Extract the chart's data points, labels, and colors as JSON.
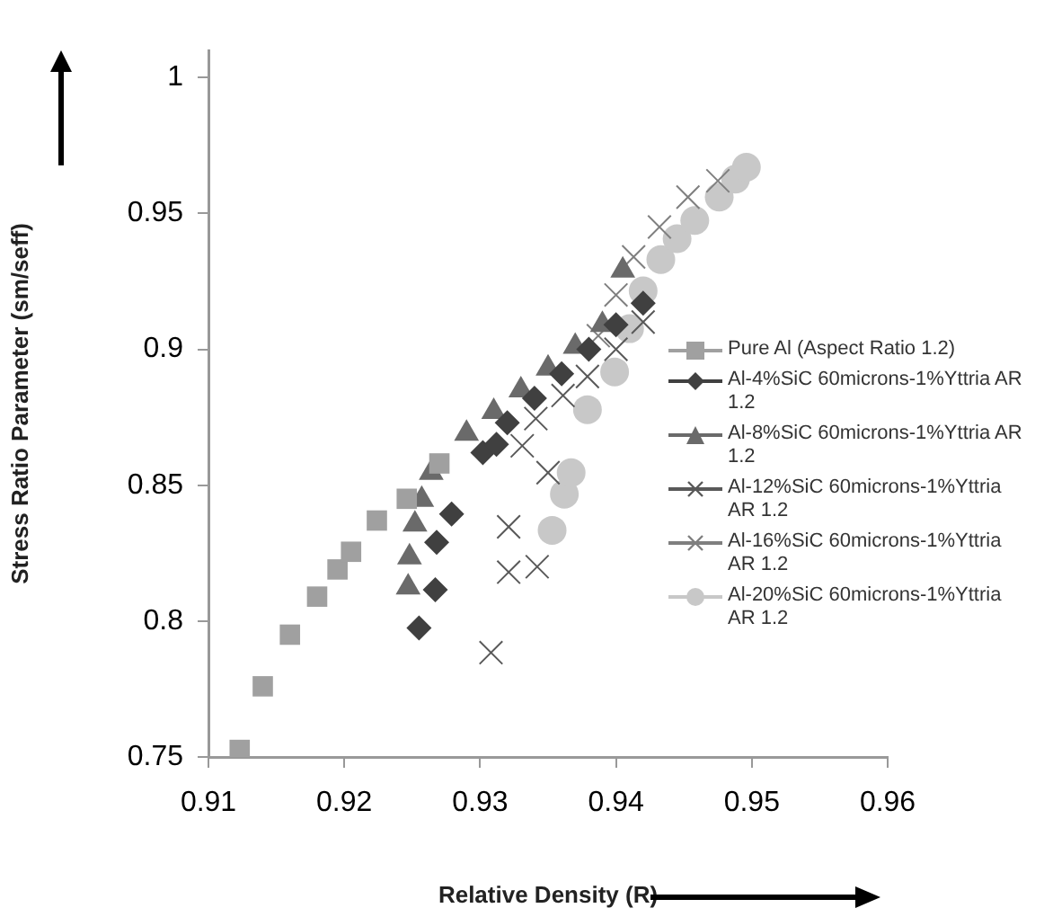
{
  "chart_data": {
    "type": "scatter",
    "xlabel": "Relative Density (R)",
    "ylabel": "Stress Ratio Parameter (sm/seff)",
    "xlim": [
      0.91,
      0.96
    ],
    "xticks": [
      0.91,
      0.92,
      0.93,
      0.94,
      0.95,
      0.96
    ],
    "ylim": [
      0.75,
      1.01
    ],
    "yticks": [
      0.75,
      0.8,
      0.85,
      0.9,
      0.95,
      1
    ],
    "grid": false,
    "legend": "right",
    "series": [
      {
        "name": "Pure Al (Aspect Ratio 1.2)",
        "color": "#a0a0a0",
        "marker": "square",
        "x": [
          0.9123,
          0.914,
          0.916,
          0.918,
          0.9195,
          0.9205,
          0.9224,
          0.9246,
          0.927
        ],
        "values": [
          0.7526,
          0.776,
          0.795,
          0.809,
          0.819,
          0.8255,
          0.837,
          0.845,
          0.858
        ]
      },
      {
        "name": "Al-4%SiC 60microns-1%Yttria AR 1.2",
        "color": "#404040",
        "marker": "diamond",
        "x": [
          0.9255,
          0.9267,
          0.9268,
          0.9279,
          0.9302,
          0.9312,
          0.932,
          0.934,
          0.936,
          0.938,
          0.94,
          0.942
        ],
        "values": [
          0.7975,
          0.8115,
          0.829,
          0.8394,
          0.862,
          0.865,
          0.873,
          0.882,
          0.891,
          0.9,
          0.909,
          0.917
        ]
      },
      {
        "name": "Al-8%SiC 60microns-1%Yttria AR 1.2",
        "color": "#6a6a6a",
        "marker": "triangle",
        "x": [
          0.9247,
          0.9248,
          0.9252,
          0.9257,
          0.9264,
          0.9273,
          0.929,
          0.931,
          0.933,
          0.935,
          0.937,
          0.939,
          0.9405
        ],
        "values": [
          0.8124,
          0.8235,
          0.8356,
          0.8447,
          0.8546,
          null,
          0.869,
          0.877,
          0.885,
          0.893,
          0.901,
          0.909,
          0.929
        ]
      },
      {
        "name": "Al-12%SiC 60microns-1%Yttria AR 1.2",
        "color": "#595959",
        "marker": "cross",
        "x": [
          0.9308,
          0.9321,
          0.9342,
          0.9321,
          0.935,
          0.9331,
          0.9341,
          0.9361,
          0.9379,
          0.94,
          0.942
        ],
        "values": [
          0.7884,
          0.818,
          0.82,
          0.8347,
          0.8546,
          0.8645,
          0.8745,
          0.883,
          0.89,
          0.9,
          0.91
        ]
      },
      {
        "name": "Al-16%SiC 60microns-1%Yttria AR 1.2",
        "color": "#7f7f7f",
        "marker": "cross",
        "x": [
          0.9387,
          0.94,
          0.9413,
          0.9432,
          0.9453,
          0.9475
        ],
        "values": [
          0.905,
          0.92,
          0.934,
          0.945,
          0.956,
          0.962
        ]
      },
      {
        "name": "Al-20%SiC 60microns-1%Yttria AR 1.2",
        "color": "#c8c8c8",
        "marker": "circle",
        "x": [
          0.9353,
          0.9362,
          0.9367,
          0.9379,
          0.9399,
          0.941,
          0.942,
          0.9433,
          0.9445,
          0.9458,
          0.9476,
          0.9488,
          0.9496
        ],
        "values": [
          0.8334,
          0.8467,
          0.8546,
          0.8778,
          0.8917,
          0.9076,
          0.9215,
          0.933,
          0.9407,
          0.9474,
          0.956,
          0.9626,
          0.967
        ]
      }
    ]
  }
}
